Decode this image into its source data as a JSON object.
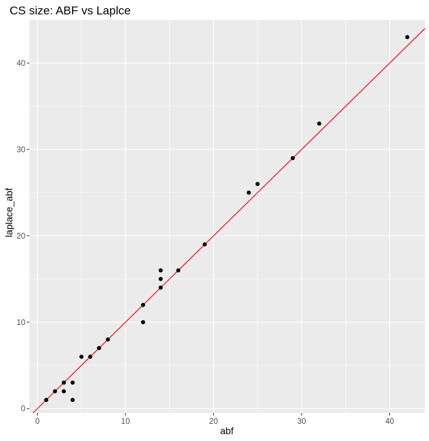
{
  "chart_data": {
    "type": "scatter",
    "title": "CS size: ABF vs Laplce",
    "xlabel": "abf",
    "ylabel": "laplace_abf",
    "xlim": [
      -0.9,
      44
    ],
    "ylim": [
      -0.5,
      45
    ],
    "x_ticks": [
      0,
      10,
      20,
      30,
      40
    ],
    "y_ticks": [
      0,
      10,
      20,
      30,
      40
    ],
    "x_tick_labels": [
      "0",
      "10",
      "20",
      "30",
      "40"
    ],
    "y_tick_labels": [
      "0",
      "10",
      "20",
      "30",
      "40"
    ],
    "grid": true,
    "reference_line": {
      "slope": 1,
      "intercept": 0,
      "color": "#ff0000"
    },
    "point_color": "#000000",
    "panel_background": "#ebebeb",
    "points": [
      {
        "x": 1,
        "y": 1
      },
      {
        "x": 2,
        "y": 2
      },
      {
        "x": 3,
        "y": 2
      },
      {
        "x": 3,
        "y": 3
      },
      {
        "x": 4,
        "y": 3
      },
      {
        "x": 4,
        "y": 1
      },
      {
        "x": 5,
        "y": 6
      },
      {
        "x": 6,
        "y": 6
      },
      {
        "x": 7,
        "y": 7
      },
      {
        "x": 8,
        "y": 8
      },
      {
        "x": 12,
        "y": 12
      },
      {
        "x": 12,
        "y": 10
      },
      {
        "x": 14,
        "y": 16
      },
      {
        "x": 14,
        "y": 15
      },
      {
        "x": 14,
        "y": 14
      },
      {
        "x": 16,
        "y": 16
      },
      {
        "x": 19,
        "y": 19
      },
      {
        "x": 24,
        "y": 25
      },
      {
        "x": 25,
        "y": 26
      },
      {
        "x": 29,
        "y": 29
      },
      {
        "x": 32,
        "y": 33
      },
      {
        "x": 42,
        "y": 43
      }
    ]
  }
}
